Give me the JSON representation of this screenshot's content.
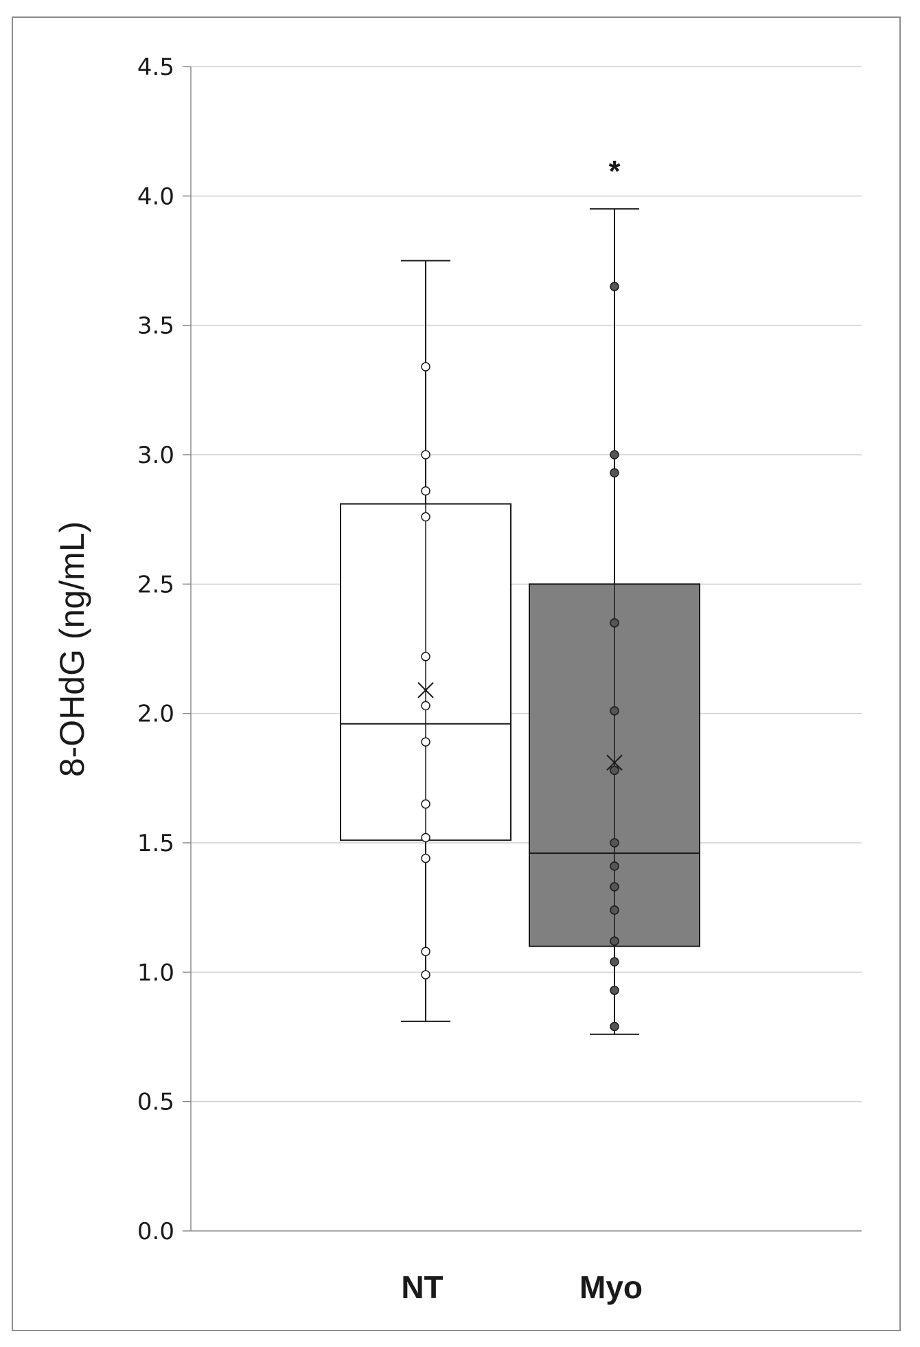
{
  "chart_data": {
    "type": "box",
    "title": "",
    "ylabel": "8-OHdG (ng/mL)",
    "xlabel": "",
    "ylim": [
      0,
      4.5
    ],
    "ytick_step": 0.5,
    "yticks": [
      "0.0",
      "0.5",
      "1.0",
      "1.5",
      "2.0",
      "2.5",
      "3.0",
      "3.5",
      "4.0",
      "4.5"
    ],
    "grid": true,
    "categories": [
      "NT",
      "Myo"
    ],
    "series": [
      {
        "category": "NT",
        "fill": "#ffffff",
        "min": 0.81,
        "q1": 1.51,
        "median": 1.96,
        "q3": 2.81,
        "max": 3.75,
        "mean": 2.09,
        "points": [
          3.34,
          3.0,
          2.86,
          2.76,
          2.22,
          2.03,
          1.89,
          1.65,
          1.52,
          1.44,
          1.08,
          0.99
        ]
      },
      {
        "category": "Myo",
        "fill": "#808080",
        "min": 0.76,
        "q1": 1.1,
        "median": 1.46,
        "q3": 2.5,
        "max": 3.95,
        "mean": 1.81,
        "points": [
          3.65,
          3.0,
          2.93,
          2.35,
          2.01,
          1.78,
          1.5,
          1.41,
          1.33,
          1.24,
          1.12,
          1.04,
          0.93,
          0.79
        ],
        "significance": "*"
      }
    ]
  },
  "colors": {
    "grid": "#d0d0d0",
    "axis": "#8c8c8c",
    "frame": "#8c8c8c",
    "stroke": "#1a1a1a",
    "nt_point_fill": "#ffffff",
    "myo_point_fill": "#555555"
  }
}
